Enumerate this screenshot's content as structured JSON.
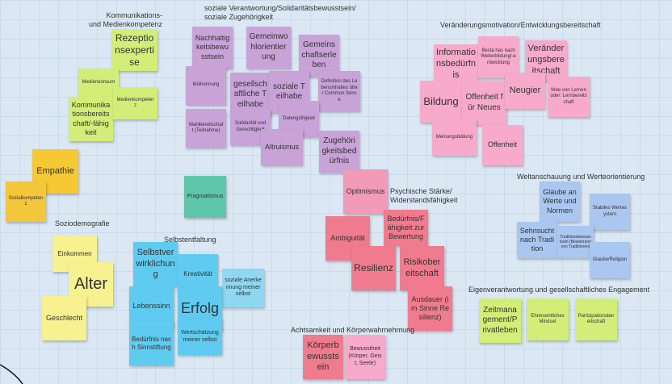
{
  "clusters": [
    {
      "label": "Kommunikations-\nund Medienkompetenz",
      "notes": [
        "Rezeptionsexpertise",
        "Medienkonsum",
        "Kommunikationsbereitschaft/-fähigkeit",
        "Medienkompetenz"
      ]
    },
    {
      "label": "soziale Verantwortung/Solidaritätsbewusstsein/\nsoziale Zugehörigkeit",
      "notes": [
        "Nachhaltigkeitsbewusstsein",
        "Gemeinwohlorientierung",
        "Gemeinschaftserleben",
        "Müllrennung",
        "gesellschaftliche Teilhabe",
        "soziale Teilhabe",
        "Definition des Lebensinhaltes über Common Sense",
        "Wahlbereitschaft (Teilnahme)",
        "Solidarität und Gerechtigkeit",
        "Datengültigkeit",
        "Altruismus",
        "Zugehörigkeitsbedürfnis"
      ]
    },
    {
      "label": "Veränderungsmotivation/Entwicklungsbereitschaft",
      "notes": [
        "Informationsbedürfnis",
        "Bestä has nach Weiterbildung/-entwicklung",
        "Veränderungsbereitschaft",
        "Bildung",
        "Offenheit für Neues",
        "Neugier",
        "Wee von Lernen oder: Lernbereitschaft",
        "Meinungsbildung",
        "Offenheit"
      ]
    },
    {
      "label": "Psychische Stärke/\nWiderstandsfähigkeit",
      "notes": [
        "Optimismus",
        "Ambiguität",
        "Bedürfnis/Fähigkeit zur Bewertung",
        "Resilienz",
        "Risikobereitschaft",
        "Ausdauer (im Sinne Resilienz)"
      ]
    },
    {
      "label": "Weltanschauung und Werteorientierung",
      "notes": [
        "Glaube an Werte und Normen",
        "Stabiles Wertesystem",
        "Sehnsucht nach Tradition",
        "Traditionsbewusstsein (Bewahrung von Traditionen)",
        "Glaube/Religion"
      ]
    },
    {
      "label": "Soziodemografie",
      "notes": [
        "Einkommen",
        "Alter",
        "Geschlecht"
      ]
    },
    {
      "label": "Selbstentfaltung",
      "notes": [
        "Selbstverwirklichung",
        "Kreativität",
        "soziale Anerkennung meiner selbst",
        "Lebenssinn",
        "Erfolg",
        "Bedürfnis nach Sinnstiftung",
        "Wertschätzung meiner selbst"
      ]
    },
    {
      "label": "Eigenverantwortung und gesellschaftliches Engagement",
      "notes": [
        "Zeitmanagement/Privatleben",
        "Ehrenamtliches Mindset",
        "Partizipationsbereitschaft"
      ]
    },
    {
      "label": "Achtsamkeit und Körperwahrnehmung",
      "notes": [
        "Körperbewusstsein",
        "Bewusstheit (Körper, Geist, Seele)"
      ]
    }
  ],
  "loose_notes": [
    "Empathie",
    "Sozialkompetenz",
    "Pragmatismus"
  ]
}
